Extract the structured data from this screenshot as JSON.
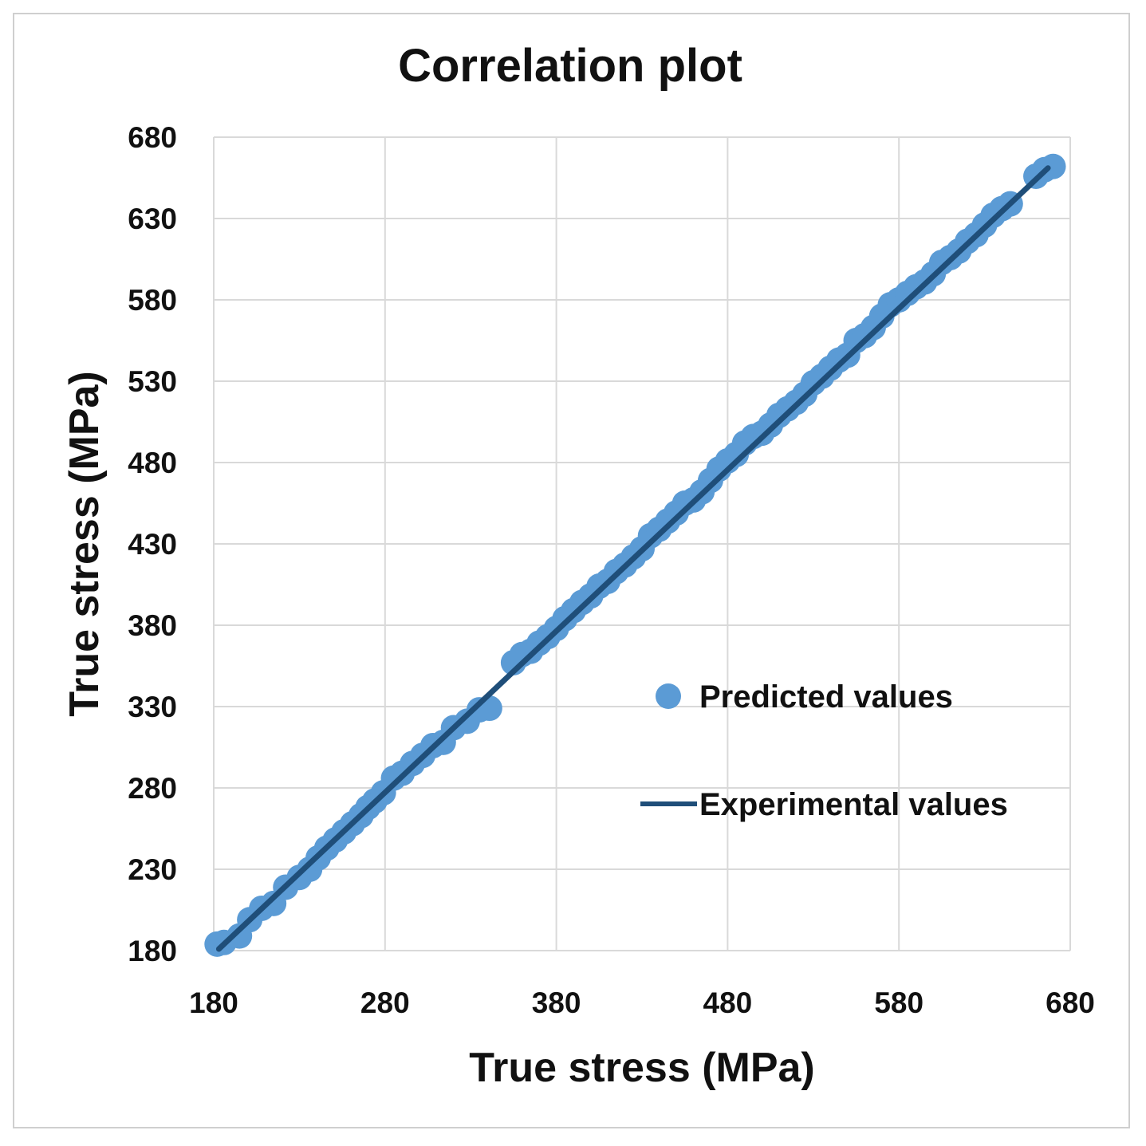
{
  "chart_data": {
    "type": "scatter",
    "title": "Correlation plot",
    "xlabel": "True stress (MPa)",
    "ylabel": "True stress (MPa)",
    "xlim": [
      180,
      680
    ],
    "ylim": [
      180,
      680
    ],
    "xticks": [
      "180",
      "280",
      "380",
      "480",
      "580",
      "680"
    ],
    "yticks": [
      "180",
      "230",
      "280",
      "330",
      "380",
      "430",
      "480",
      "530",
      "580",
      "630",
      "680"
    ],
    "grid": true,
    "legend_position": "center-right",
    "series": [
      {
        "name": "Predicted values",
        "kind": "scatter",
        "color": "#5b9bd5",
        "points": [
          [
            182,
            184
          ],
          [
            186,
            185
          ],
          [
            195,
            189
          ],
          [
            201,
            199
          ],
          [
            208,
            206
          ],
          [
            215,
            209
          ],
          [
            222,
            219
          ],
          [
            230,
            225
          ],
          [
            236,
            230
          ],
          [
            241,
            237
          ],
          [
            246,
            243
          ],
          [
            251,
            248
          ],
          [
            256,
            253
          ],
          [
            261,
            258
          ],
          [
            266,
            263
          ],
          [
            270,
            268
          ],
          [
            274,
            272
          ],
          [
            279,
            277
          ],
          [
            285,
            286
          ],
          [
            290,
            289
          ],
          [
            296,
            295
          ],
          [
            302,
            300
          ],
          [
            308,
            306
          ],
          [
            314,
            308
          ],
          [
            320,
            317
          ],
          [
            328,
            321
          ],
          [
            335,
            328
          ],
          [
            341,
            329
          ],
          [
            355,
            357
          ],
          [
            360,
            362
          ],
          [
            365,
            364
          ],
          [
            370,
            369
          ],
          [
            375,
            373
          ],
          [
            380,
            378
          ],
          [
            385,
            384
          ],
          [
            390,
            389
          ],
          [
            395,
            394
          ],
          [
            400,
            398
          ],
          [
            405,
            404
          ],
          [
            410,
            407
          ],
          [
            415,
            413
          ],
          [
            420,
            417
          ],
          [
            425,
            422
          ],
          [
            430,
            427
          ],
          [
            435,
            435
          ],
          [
            440,
            439
          ],
          [
            445,
            444
          ],
          [
            450,
            449
          ],
          [
            455,
            455
          ],
          [
            460,
            457
          ],
          [
            465,
            462
          ],
          [
            470,
            469
          ],
          [
            475,
            476
          ],
          [
            480,
            481
          ],
          [
            485,
            485
          ],
          [
            490,
            492
          ],
          [
            495,
            496
          ],
          [
            500,
            498
          ],
          [
            505,
            503
          ],
          [
            510,
            509
          ],
          [
            515,
            513
          ],
          [
            520,
            517
          ],
          [
            525,
            522
          ],
          [
            530,
            529
          ],
          [
            535,
            533
          ],
          [
            540,
            538
          ],
          [
            545,
            543
          ],
          [
            550,
            546
          ],
          [
            555,
            555
          ],
          [
            560,
            558
          ],
          [
            565,
            563
          ],
          [
            570,
            570
          ],
          [
            575,
            577
          ],
          [
            580,
            580
          ],
          [
            585,
            584
          ],
          [
            590,
            588
          ],
          [
            595,
            591
          ],
          [
            600,
            596
          ],
          [
            605,
            603
          ],
          [
            610,
            606
          ],
          [
            615,
            610
          ],
          [
            620,
            616
          ],
          [
            625,
            620
          ],
          [
            630,
            626
          ],
          [
            635,
            632
          ],
          [
            640,
            636
          ],
          [
            645,
            639
          ],
          [
            660,
            656
          ],
          [
            665,
            660
          ],
          [
            670,
            662
          ]
        ]
      },
      {
        "name": "Experimental values",
        "kind": "line",
        "color": "#1f4e79",
        "points": [
          [
            183,
            181
          ],
          [
            667,
            661
          ]
        ]
      }
    ]
  }
}
